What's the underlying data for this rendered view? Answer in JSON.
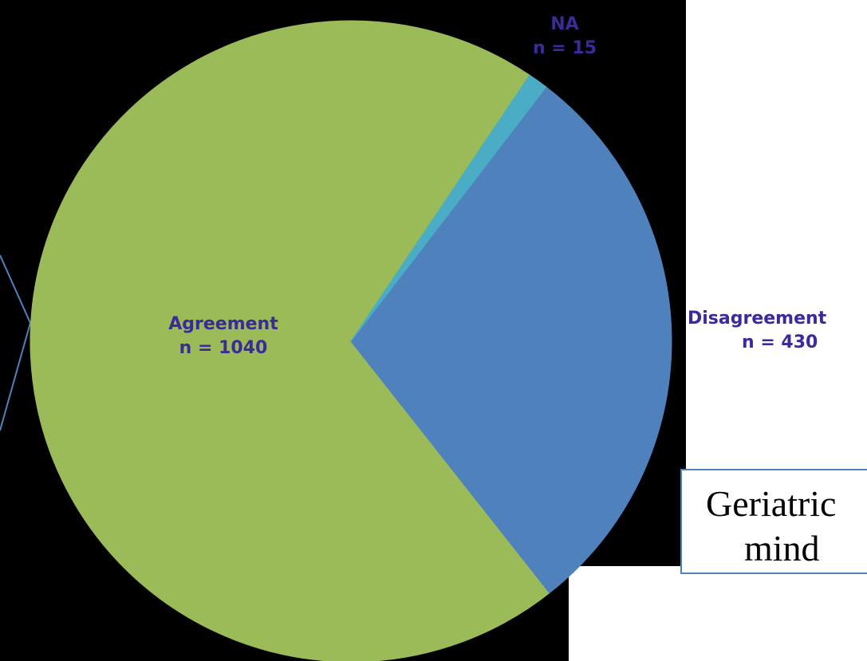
{
  "chart_data": {
    "type": "pie",
    "categories": [
      "Agreement",
      "Disagreement",
      "NA"
    ],
    "values": [
      1040,
      430,
      15
    ],
    "colors": [
      "#9bbb59",
      "#4f81bd",
      "#4bacc6"
    ],
    "labels": [
      {
        "name": "Agreement",
        "n_text": "n = 1040"
      },
      {
        "name": "Disagreement",
        "n_text": "n = 430"
      },
      {
        "name": "NA",
        "n_text": "n = 15"
      }
    ]
  },
  "callout": {
    "line1": "Geriatric",
    "line2": "mind"
  },
  "colors": {
    "background": "#000000",
    "label_text": "#3a2a9a",
    "callout_border": "#4f81bd"
  }
}
